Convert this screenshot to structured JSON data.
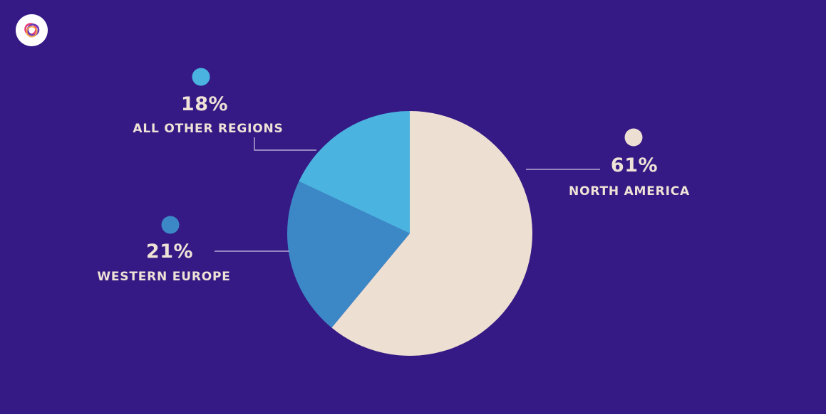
{
  "colors": {
    "background": "#351A85",
    "north_america": "#EDDFD2",
    "western_europe": "#3C88C6",
    "all_other_regions": "#4AB3E0",
    "text": "#EFE2D6",
    "leader_line": "#CFC6E6"
  },
  "logo": {
    "icon": "brand-logo-icon"
  },
  "chart_data": {
    "type": "pie",
    "slices": [
      {
        "key": "north_america",
        "label": "NORTH AMERICA",
        "value": 61,
        "display": "61%"
      },
      {
        "key": "western_europe",
        "label": "WESTERN EUROPE",
        "value": 21,
        "display": "21%"
      },
      {
        "key": "all_other_regions",
        "label": "ALL OTHER REGIONS",
        "value": 18,
        "display": "18%"
      }
    ]
  }
}
